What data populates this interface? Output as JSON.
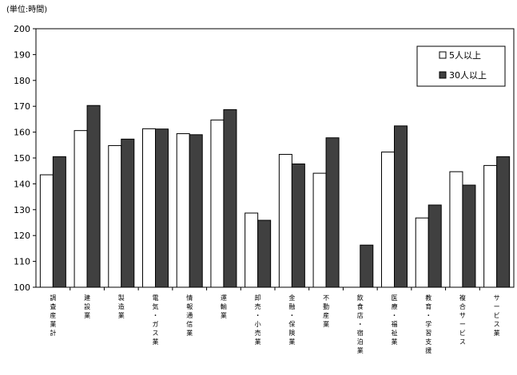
{
  "chart_data": {
    "type": "bar",
    "unit_label": "(単位:時間)",
    "categories": [
      "調査産業計",
      "建設業",
      "製造業",
      "電気・ガス業",
      "情報通信業",
      "運輸業",
      "卸売・小売業",
      "金融・保険業",
      "不動産業",
      "飲食店・宿泊業",
      "医療・福祉業",
      "教育・学習支援",
      "複合サービス",
      "サービス業"
    ],
    "series": [
      {
        "name": "5人以上",
        "values": [
          143.5,
          160.6,
          154.8,
          161.3,
          159.4,
          164.7,
          128.7,
          151.4,
          144.1,
          null,
          152.3,
          126.8,
          144.7,
          147.1
        ]
      },
      {
        "name": "30人以上",
        "values": [
          150.5,
          170.3,
          157.3,
          161.2,
          159.0,
          168.7,
          125.9,
          147.7,
          157.8,
          116.3,
          162.4,
          131.8,
          139.5,
          150.5
        ]
      }
    ],
    "ylim": [
      100,
      200
    ],
    "yticks": [
      100,
      110,
      120,
      130,
      140,
      150,
      160,
      170,
      180,
      190,
      200
    ],
    "legend_position": "top-right",
    "grid": false,
    "colors": {
      "series1_fill": "#ffffff",
      "series2_fill": "#404040",
      "stroke": "#000000"
    }
  }
}
